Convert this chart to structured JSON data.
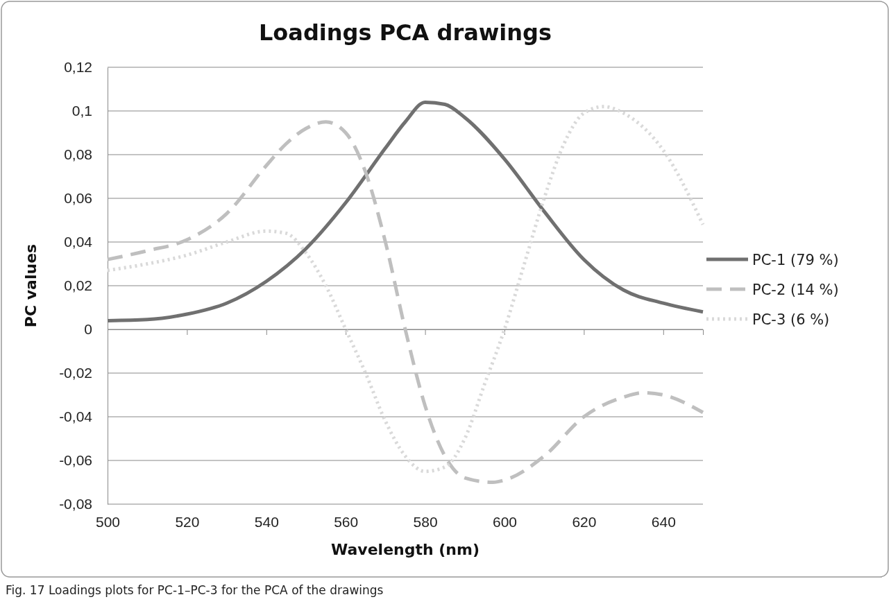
{
  "chart_data": {
    "type": "line",
    "title": "Loadings PCA drawings",
    "xlabel": "Wavelength (nm)",
    "ylabel": "PC values",
    "xlim": [
      500,
      650
    ],
    "xticks": [
      500,
      520,
      540,
      560,
      580,
      600,
      620,
      640
    ],
    "ylim": [
      -0.08,
      0.12
    ],
    "yticks": [
      {
        "value": -0.08,
        "label": "-0,08"
      },
      {
        "value": -0.06,
        "label": "-0,06"
      },
      {
        "value": -0.04,
        "label": "-0,04"
      },
      {
        "value": -0.02,
        "label": "-0,02"
      },
      {
        "value": 0,
        "label": "0"
      },
      {
        "value": 0.02,
        "label": "0,02"
      },
      {
        "value": 0.04,
        "label": "0,04"
      },
      {
        "value": 0.06,
        "label": "0,06"
      },
      {
        "value": 0.08,
        "label": "0,08"
      },
      {
        "value": 0.1,
        "label": "0,1"
      },
      {
        "value": 0.12,
        "label": "0,12"
      }
    ],
    "grid": "y",
    "legend": "right",
    "marker": "none",
    "series": [
      {
        "name": "PC-1 (79 %)",
        "color": "#707070",
        "line_style": "solid",
        "x": [
          500,
          510,
          520,
          530,
          540,
          550,
          560,
          570,
          575,
          580,
          585,
          590,
          600,
          610,
          620,
          630,
          640,
          650
        ],
        "values": [
          0.004,
          0.0045,
          0.007,
          0.012,
          0.022,
          0.037,
          0.058,
          0.083,
          0.095,
          0.104,
          0.103,
          0.097,
          0.078,
          0.054,
          0.032,
          0.018,
          0.012,
          0.008
        ]
      },
      {
        "name": "PC-2 (14 %)",
        "color": "#bfbfbf",
        "line_style": "dashed",
        "x": [
          500,
          510,
          520,
          530,
          540,
          545,
          550,
          555,
          560,
          565,
          570,
          575,
          580,
          585,
          590,
          597,
          600,
          610,
          620,
          630,
          635,
          640,
          650
        ],
        "values": [
          0.032,
          0.036,
          0.041,
          0.053,
          0.075,
          0.085,
          0.092,
          0.095,
          0.09,
          0.072,
          0.04,
          0.0,
          -0.035,
          -0.058,
          -0.068,
          -0.07,
          -0.069,
          -0.058,
          -0.04,
          -0.031,
          -0.029,
          -0.03,
          -0.038
        ]
      },
      {
        "name": "PC-3 (6 %)",
        "color": "#d9d9d9",
        "line_style": "dotted",
        "x": [
          500,
          510,
          520,
          530,
          540,
          545,
          550,
          555,
          560,
          565,
          570,
          575,
          580,
          585,
          590,
          595,
          600,
          605,
          610,
          615,
          620,
          625,
          630,
          640,
          650
        ],
        "values": [
          0.027,
          0.03,
          0.034,
          0.04,
          0.045,
          0.044,
          0.035,
          0.02,
          0.0,
          -0.02,
          -0.042,
          -0.058,
          -0.065,
          -0.063,
          -0.05,
          -0.025,
          0.0,
          0.03,
          0.06,
          0.085,
          0.099,
          0.102,
          0.099,
          0.082,
          0.048
        ]
      }
    ],
    "annotations": [
      "Fig. 17 Loadings plots for PC-1–PC-3 for the PCA of the drawings"
    ]
  }
}
